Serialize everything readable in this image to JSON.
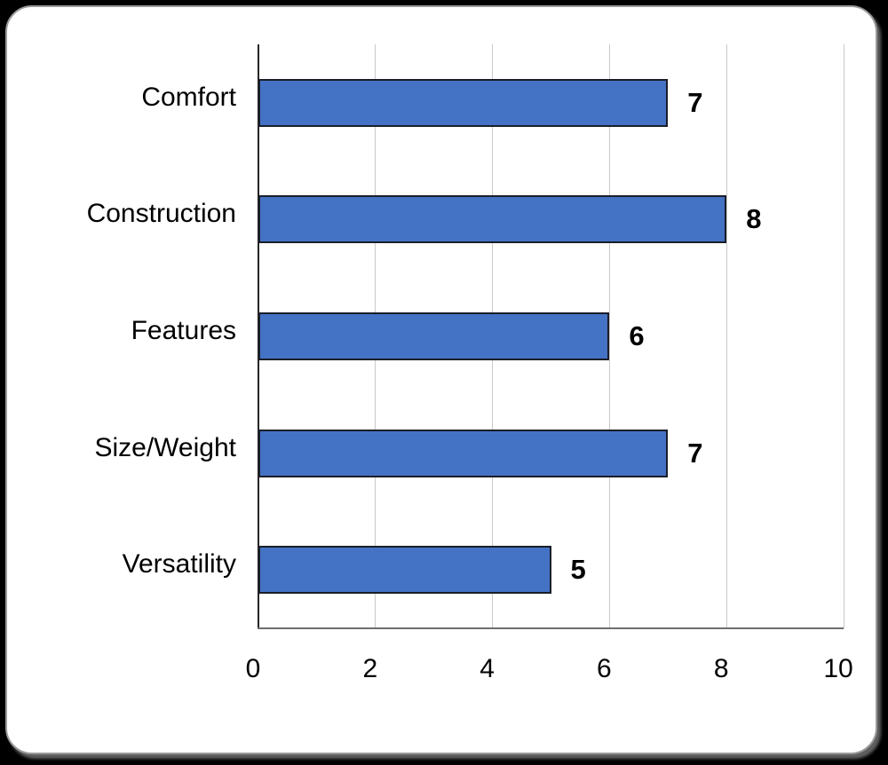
{
  "chart_data": {
    "type": "bar",
    "orientation": "horizontal",
    "categories": [
      "Comfort",
      "Construction",
      "Features",
      "Size/Weight",
      "Versatility"
    ],
    "values": [
      7,
      8,
      6,
      7,
      5
    ],
    "xlim": [
      0,
      10
    ],
    "xticks": [
      0,
      2,
      4,
      6,
      8,
      10
    ],
    "grid": "vertical-gridlines-on",
    "legend": "none",
    "colors": {
      "bar_fill": "#4472C4",
      "bar_border": "#1a1e28",
      "gridline": "#c9c9c9",
      "y_axis_line": "#262626",
      "x_axis_line": "#6e6e6e",
      "text": "#000000",
      "card_background": "#ffffff",
      "page_background": "#000000"
    }
  }
}
